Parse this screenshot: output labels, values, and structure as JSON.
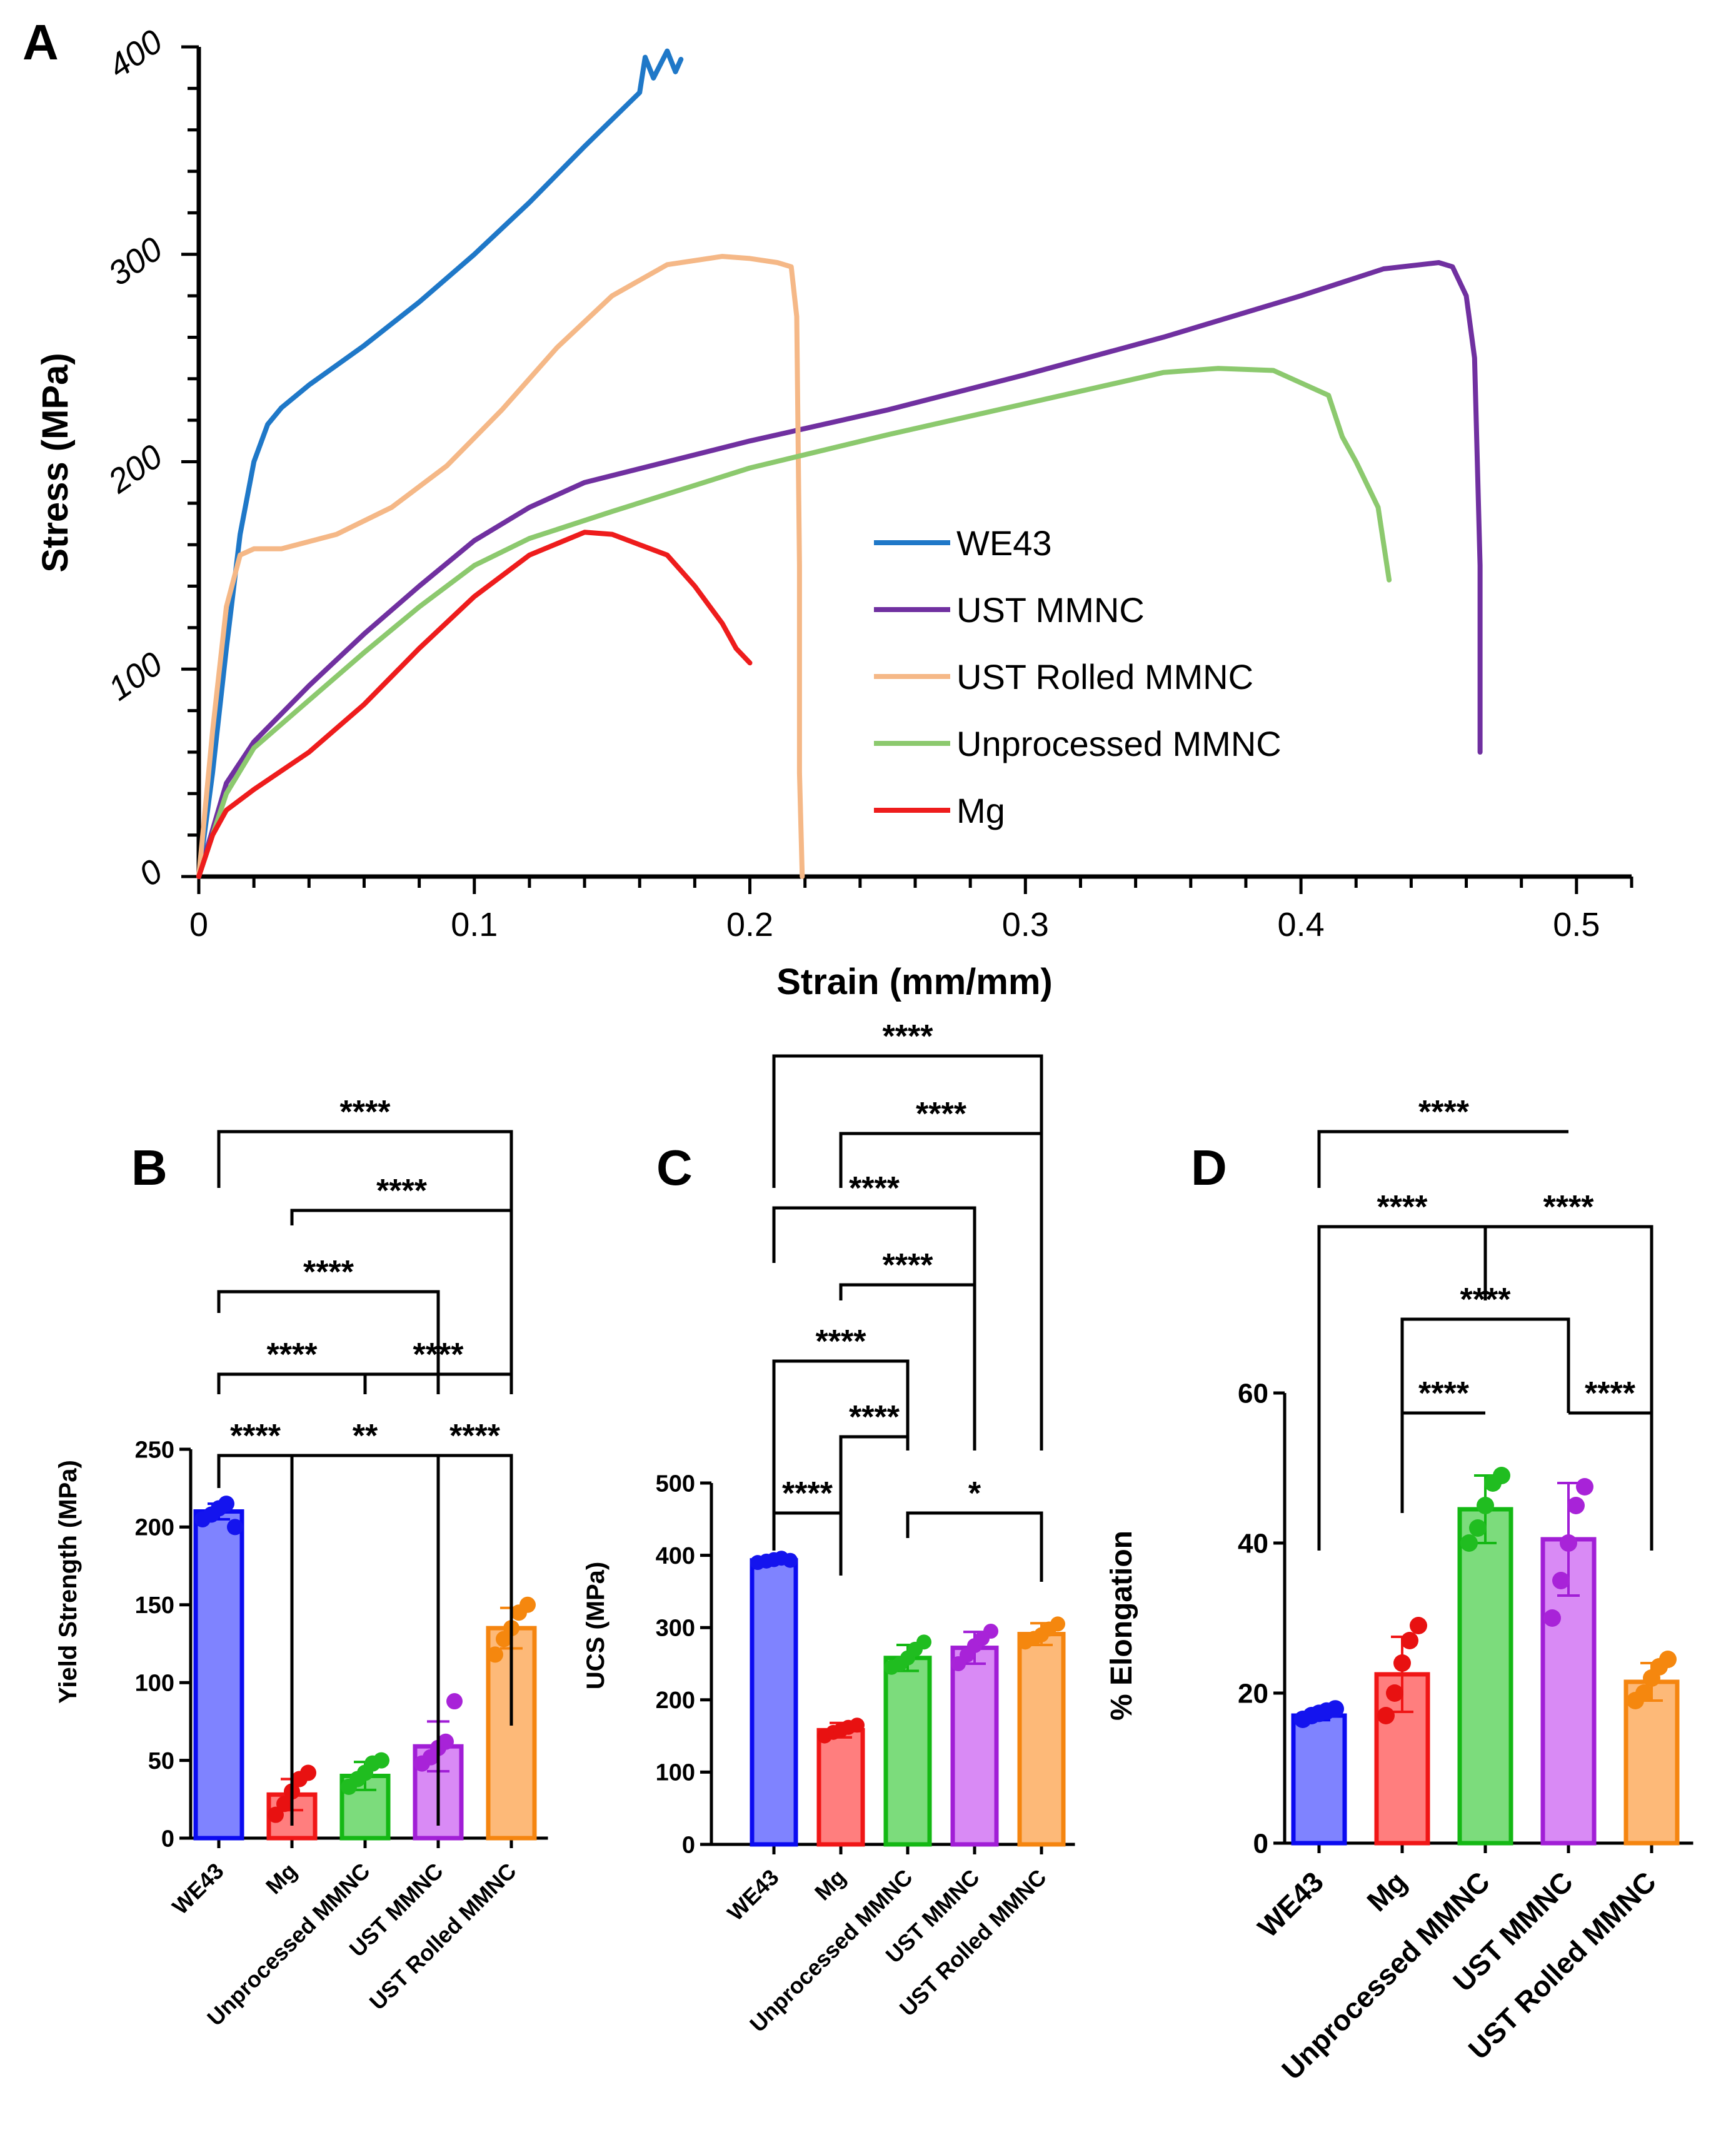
{
  "chart_data": [
    {
      "panel": "A",
      "type": "line",
      "xlabel": "Strain (mm/mm)",
      "ylabel": "Stress (MPa)",
      "xlim": [
        0,
        0.52
      ],
      "ylim": [
        0,
        400
      ],
      "xticks": [
        "0",
        "0.1",
        "0.2",
        "0.3",
        "0.4",
        "0.5"
      ],
      "yticks": [
        "0",
        "100",
        "200",
        "300",
        "400"
      ],
      "legend_position": "center-right",
      "series": [
        {
          "name": "WE43",
          "color": "#1f78c8",
          "x": [
            0,
            0.005,
            0.01,
            0.015,
            0.02,
            0.025,
            0.03,
            0.04,
            0.06,
            0.08,
            0.1,
            0.12,
            0.14,
            0.16,
            0.162,
            0.165,
            0.17,
            0.173,
            0.175
          ],
          "y": [
            0,
            50,
            110,
            165,
            200,
            218,
            226,
            237,
            256,
            277,
            300,
            325,
            352,
            378,
            395,
            385,
            398,
            388,
            394
          ]
        },
        {
          "name": "UST MMNC",
          "color": "#7030a0",
          "x": [
            0,
            0.01,
            0.02,
            0.04,
            0.06,
            0.08,
            0.1,
            0.12,
            0.14,
            0.2,
            0.25,
            0.3,
            0.35,
            0.4,
            0.43,
            0.45,
            0.455,
            0.46,
            0.463,
            0.465,
            0.465
          ],
          "y": [
            0,
            45,
            65,
            92,
            117,
            140,
            162,
            178,
            190,
            210,
            225,
            242,
            260,
            280,
            293,
            296,
            294,
            280,
            250,
            150,
            60
          ]
        },
        {
          "name": "UST Rolled MMNC",
          "color": "#f5b887",
          "x": [
            0,
            0.005,
            0.01,
            0.015,
            0.02,
            0.03,
            0.05,
            0.07,
            0.09,
            0.11,
            0.13,
            0.15,
            0.17,
            0.19,
            0.2,
            0.21,
            0.215,
            0.217,
            0.218,
            0.218,
            0.219
          ],
          "y": [
            0,
            70,
            130,
            155,
            158,
            158,
            165,
            178,
            198,
            225,
            255,
            280,
            295,
            299,
            298,
            296,
            294,
            270,
            150,
            50,
            0
          ]
        },
        {
          "name": "Unprocessed MMNC",
          "color": "#8cc96e",
          "x": [
            0,
            0.01,
            0.02,
            0.04,
            0.06,
            0.08,
            0.1,
            0.12,
            0.15,
            0.2,
            0.25,
            0.3,
            0.35,
            0.37,
            0.39,
            0.4,
            0.41,
            0.415,
            0.42,
            0.428,
            0.432
          ],
          "y": [
            0,
            40,
            62,
            85,
            108,
            130,
            150,
            163,
            176,
            197,
            213,
            228,
            243,
            245,
            244,
            238,
            232,
            212,
            200,
            178,
            143
          ]
        },
        {
          "name": "Mg",
          "color": "#ee1c1c",
          "x": [
            0,
            0.005,
            0.01,
            0.02,
            0.04,
            0.06,
            0.08,
            0.1,
            0.12,
            0.14,
            0.15,
            0.16,
            0.17,
            0.18,
            0.19,
            0.195,
            0.2
          ],
          "y": [
            0,
            20,
            32,
            42,
            60,
            83,
            110,
            135,
            155,
            166,
            165,
            160,
            155,
            140,
            122,
            110,
            103
          ]
        }
      ]
    },
    {
      "panel": "B",
      "type": "bar",
      "ylabel": "Yield Strength (MPa)",
      "ylim": [
        0,
        250
      ],
      "yticks": [
        "0",
        "50",
        "100",
        "150",
        "200",
        "250"
      ],
      "categories": [
        "WE43",
        "Mg",
        "Unprocessed MMNC",
        "UST MMNC",
        "UST Rolled MMNC"
      ],
      "values": [
        210,
        28,
        40,
        59,
        135
      ],
      "errors": [
        5,
        10,
        9,
        16,
        13
      ],
      "points": [
        [
          205,
          208,
          212,
          215,
          200
        ],
        [
          15,
          22,
          30,
          38,
          42
        ],
        [
          33,
          38,
          42,
          48,
          50
        ],
        [
          48,
          52,
          58,
          62,
          88
        ],
        [
          118,
          128,
          135,
          145,
          150
        ]
      ],
      "significance": [
        {
          "a": 0,
          "b": 4,
          "label": "****"
        },
        {
          "a": 1,
          "b": 4,
          "label": "****"
        },
        {
          "a": 0,
          "b": 3,
          "label": "****"
        },
        {
          "a": 0,
          "b": 2,
          "label": "****"
        },
        {
          "a": 2,
          "b": 4,
          "label": "****"
        },
        {
          "a": 0,
          "b": 1,
          "label": "****"
        },
        {
          "a": 1,
          "b": 3,
          "label": "**"
        },
        {
          "a": 3,
          "b": 4,
          "label": "****"
        }
      ]
    },
    {
      "panel": "C",
      "type": "bar",
      "ylabel": "UCS (MPa)",
      "ylim": [
        0,
        500
      ],
      "yticks": [
        "0",
        "100",
        "200",
        "300",
        "400",
        "500"
      ],
      "categories": [
        "WE43",
        "Mg",
        "Unprocessed MMNC",
        "UST MMNC",
        "UST Rolled MMNC"
      ],
      "values": [
        393,
        158,
        258,
        272,
        291
      ],
      "errors": [
        3,
        10,
        18,
        22,
        15
      ],
      "points": [
        [
          390,
          392,
          394,
          396,
          393
        ],
        [
          150,
          155,
          158,
          162,
          165
        ],
        [
          245,
          250,
          258,
          270,
          280
        ],
        [
          250,
          262,
          275,
          285,
          295
        ],
        [
          280,
          285,
          290,
          298,
          305
        ]
      ],
      "significance": [
        {
          "a": 0,
          "b": 4,
          "label": "****"
        },
        {
          "a": 1,
          "b": 4,
          "label": "****"
        },
        {
          "a": 0,
          "b": 3,
          "label": "****"
        },
        {
          "a": 1,
          "b": 3,
          "label": "****"
        },
        {
          "a": 0,
          "b": 2,
          "label": "****"
        },
        {
          "a": 1,
          "b": 2,
          "label": "****"
        },
        {
          "a": 0,
          "b": 1,
          "label": "****"
        },
        {
          "a": 2,
          "b": 4,
          "label": "*"
        }
      ]
    },
    {
      "panel": "D",
      "type": "bar",
      "ylabel": "% Elongation",
      "ylim": [
        0,
        60
      ],
      "yticks": [
        "0",
        "20",
        "40",
        "60"
      ],
      "categories": [
        "WE43",
        "Mg",
        "Unprocessed MMNC",
        "UST MMNC",
        "UST Rolled MMNC"
      ],
      "values": [
        17,
        22.5,
        44.5,
        40.5,
        21.5
      ],
      "errors": [
        0.6,
        5,
        4.5,
        7.5,
        2.5
      ],
      "points": [
        [
          16.5,
          17,
          17.3,
          17.6,
          17.9
        ],
        [
          17,
          20,
          24,
          27,
          29
        ],
        [
          40,
          42,
          45,
          48,
          49
        ],
        [
          30,
          35,
          40,
          45,
          47.5
        ],
        [
          19,
          20,
          22,
          23.5,
          24.5
        ]
      ],
      "significance": [
        {
          "a": 0,
          "b": 3,
          "label": "****"
        },
        {
          "a": 0,
          "b": 2,
          "label": "****"
        },
        {
          "a": 2,
          "b": 4,
          "label": "****"
        },
        {
          "a": 1,
          "b": 3,
          "label": "****"
        },
        {
          "a": 1,
          "b": 2,
          "label": "****"
        },
        {
          "a": 3,
          "b": 4,
          "label": "****"
        }
      ]
    }
  ],
  "bar_colors": {
    "fills": [
      "#7f83ff",
      "#ff7e7e",
      "#7cdc7c",
      "#d98af5",
      "#fdb978"
    ],
    "strokes": [
      "#0b0bf0",
      "#f01616",
      "#14b814",
      "#a11ed6",
      "#f5850f"
    ],
    "dots": [
      "#1414ee",
      "#e81111",
      "#20bd20",
      "#a823d8",
      "#f5870e"
    ]
  }
}
